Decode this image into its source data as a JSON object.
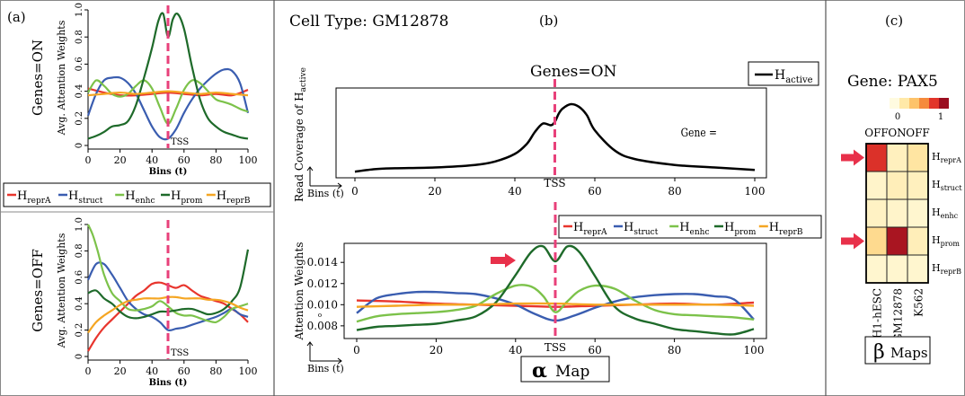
{
  "panel_labels": {
    "a": "(a)",
    "b": "(b)",
    "c": "(c)"
  },
  "heads": [
    {
      "key": "reprA",
      "label": "H",
      "sub": "reprA",
      "color": "#e8352d"
    },
    {
      "key": "struct",
      "label": "H",
      "sub": "struct",
      "color": "#3a5db0"
    },
    {
      "key": "enhc",
      "label": "H",
      "sub": "enhc",
      "color": "#7cc24a"
    },
    {
      "key": "prom",
      "label": "H",
      "sub": "prom",
      "color": "#1e6a2a"
    },
    {
      "key": "reprB",
      "label": "H",
      "sub": "reprB",
      "color": "#f5a623"
    }
  ],
  "tss_color": "#e8407a",
  "arrow_color": "#e8304a",
  "panel_a": {
    "tss_label": "TSS",
    "tss_x": 50,
    "charts": [
      {
        "side_title": "Genes=ON",
        "ylabel": "Avg. Attention Weights",
        "xlabel": "Bins (t)",
        "xlim": [
          0,
          100
        ],
        "ylim": [
          0,
          1
        ],
        "xticks": [
          0,
          20,
          40,
          60,
          80,
          100
        ],
        "yticks": [
          0,
          0.2,
          0.4,
          0.6,
          0.8,
          1
        ],
        "ytick_labels": [
          "0",
          "0.2",
          "0.4",
          "0.6",
          "0.8",
          "1.0"
        ],
        "series": [
          {
            "key": "reprA",
            "x": [
              0,
              10,
              20,
              30,
              40,
              50,
              60,
              70,
              80,
              90,
              100
            ],
            "y": [
              0.42,
              0.39,
              0.37,
              0.37,
              0.38,
              0.39,
              0.38,
              0.37,
              0.38,
              0.37,
              0.41
            ]
          },
          {
            "key": "struct",
            "x": [
              0,
              5,
              10,
              15,
              20,
              25,
              30,
              35,
              40,
              45,
              50,
              55,
              60,
              65,
              70,
              75,
              80,
              85,
              90,
              95,
              100
            ],
            "y": [
              0.22,
              0.38,
              0.48,
              0.5,
              0.5,
              0.46,
              0.38,
              0.26,
              0.14,
              0.06,
              0.05,
              0.12,
              0.24,
              0.34,
              0.42,
              0.48,
              0.53,
              0.56,
              0.55,
              0.46,
              0.24
            ]
          },
          {
            "key": "enhc",
            "x": [
              0,
              5,
              10,
              15,
              20,
              25,
              30,
              35,
              40,
              45,
              50,
              55,
              60,
              65,
              70,
              75,
              80,
              85,
              90,
              95,
              100
            ],
            "y": [
              0.39,
              0.48,
              0.44,
              0.38,
              0.36,
              0.38,
              0.44,
              0.48,
              0.42,
              0.28,
              0.16,
              0.27,
              0.41,
              0.48,
              0.46,
              0.4,
              0.34,
              0.32,
              0.3,
              0.27,
              0.25
            ]
          },
          {
            "key": "prom",
            "x": [
              0,
              5,
              10,
              15,
              20,
              25,
              30,
              35,
              40,
              44,
              47,
              50,
              53,
              56,
              60,
              65,
              70,
              75,
              80,
              85,
              90,
              95,
              100
            ],
            "y": [
              0.05,
              0.07,
              0.1,
              0.14,
              0.15,
              0.18,
              0.3,
              0.5,
              0.72,
              0.92,
              0.97,
              0.8,
              0.93,
              0.97,
              0.86,
              0.58,
              0.34,
              0.2,
              0.14,
              0.1,
              0.08,
              0.06,
              0.05
            ]
          },
          {
            "key": "reprB",
            "x": [
              0,
              10,
              20,
              30,
              40,
              50,
              60,
              70,
              80,
              90,
              100
            ],
            "y": [
              0.37,
              0.38,
              0.39,
              0.38,
              0.39,
              0.4,
              0.39,
              0.38,
              0.39,
              0.38,
              0.37
            ]
          }
        ]
      },
      {
        "side_title": "Genes=OFF",
        "ylabel": "Avg. Attention Weights",
        "xlabel": "Bins (t)",
        "xlim": [
          0,
          100
        ],
        "ylim": [
          0,
          1
        ],
        "xticks": [
          0,
          20,
          40,
          60,
          80,
          100
        ],
        "yticks": [
          0,
          0.2,
          0.4,
          0.6,
          0.8,
          1
        ],
        "ytick_labels": [
          "0",
          "0.2",
          "0.4",
          "0.6",
          "0.8",
          "1.0"
        ],
        "series": [
          {
            "key": "reprA",
            "x": [
              0,
              5,
              10,
              15,
              20,
              25,
              30,
              35,
              40,
              45,
              50,
              55,
              60,
              65,
              70,
              75,
              80,
              85,
              90,
              95,
              100
            ],
            "y": [
              0.04,
              0.14,
              0.22,
              0.28,
              0.34,
              0.4,
              0.46,
              0.5,
              0.55,
              0.56,
              0.54,
              0.52,
              0.54,
              0.5,
              0.46,
              0.44,
              0.42,
              0.4,
              0.36,
              0.32,
              0.26
            ]
          },
          {
            "key": "struct",
            "x": [
              0,
              5,
              10,
              15,
              20,
              25,
              30,
              35,
              40,
              45,
              50,
              55,
              60,
              65,
              70,
              75,
              80,
              85,
              90,
              95,
              100
            ],
            "y": [
              0.58,
              0.7,
              0.7,
              0.62,
              0.52,
              0.42,
              0.36,
              0.32,
              0.3,
              0.26,
              0.2,
              0.21,
              0.22,
              0.24,
              0.26,
              0.28,
              0.3,
              0.33,
              0.36,
              0.32,
              0.3
            ]
          },
          {
            "key": "enhc",
            "x": [
              0,
              3,
              6,
              10,
              15,
              20,
              25,
              30,
              35,
              40,
              45,
              50,
              55,
              60,
              65,
              70,
              75,
              80,
              85,
              90,
              95,
              100
            ],
            "y": [
              1.0,
              0.92,
              0.8,
              0.62,
              0.48,
              0.42,
              0.36,
              0.35,
              0.36,
              0.38,
              0.42,
              0.38,
              0.33,
              0.31,
              0.31,
              0.29,
              0.27,
              0.26,
              0.3,
              0.36,
              0.38,
              0.4
            ]
          },
          {
            "key": "prom",
            "x": [
              0,
              5,
              10,
              15,
              20,
              25,
              30,
              35,
              40,
              45,
              50,
              55,
              60,
              65,
              70,
              75,
              80,
              85,
              90,
              95,
              100
            ],
            "y": [
              0.48,
              0.5,
              0.44,
              0.4,
              0.34,
              0.3,
              0.29,
              0.3,
              0.32,
              0.34,
              0.34,
              0.35,
              0.36,
              0.36,
              0.34,
              0.32,
              0.33,
              0.36,
              0.42,
              0.52,
              0.81
            ]
          },
          {
            "key": "reprB",
            "x": [
              0,
              5,
              10,
              15,
              20,
              25,
              30,
              35,
              40,
              45,
              50,
              55,
              60,
              65,
              70,
              75,
              80,
              85,
              90,
              95,
              100
            ],
            "y": [
              0.18,
              0.26,
              0.31,
              0.35,
              0.39,
              0.42,
              0.43,
              0.44,
              0.44,
              0.44,
              0.45,
              0.45,
              0.44,
              0.44,
              0.44,
              0.43,
              0.43,
              0.42,
              0.4,
              0.37,
              0.35
            ]
          }
        ]
      }
    ]
  },
  "panel_b": {
    "cell_type": "Cell Type: GM12878",
    "subtitle": "Genes=ON",
    "map_symbol": "α",
    "map_label": "Map",
    "tss_label": "TSS",
    "tss_x": 50,
    "top_chart": {
      "ylabel_main": "Read Coverage of H",
      "ylabel_sub": "active",
      "xlabel": "Bins (t)",
      "legend_main": "H",
      "legend_sub": "active",
      "xlim": [
        0,
        100
      ],
      "xticks": [
        0,
        20,
        40,
        60,
        80,
        100
      ],
      "series": {
        "x": [
          0,
          5,
          10,
          20,
          30,
          35,
          40,
          43,
          45,
          47,
          49,
          50,
          51,
          52,
          54,
          56,
          58,
          60,
          65,
          70,
          80,
          90,
          100
        ],
        "y": [
          0.03,
          0.06,
          0.07,
          0.08,
          0.11,
          0.15,
          0.24,
          0.36,
          0.5,
          0.6,
          0.58,
          0.62,
          0.72,
          0.78,
          0.83,
          0.8,
          0.7,
          0.52,
          0.28,
          0.18,
          0.11,
          0.08,
          0.05
        ],
        "color": "#000000"
      }
    },
    "bottom_chart": {
      "ylabel": "Attention Weights",
      "xlabel": "Bins (t)",
      "xlim": [
        0,
        100
      ],
      "ylim": [
        0.0068,
        0.0158
      ],
      "xticks": [
        0,
        20,
        40,
        60,
        80,
        100
      ],
      "yticks": [
        0.008,
        0.01,
        0.012,
        0.014
      ],
      "ytick_labels": [
        "0.008",
        "0.010",
        "0.012",
        "0.014"
      ],
      "axis_glyph": "o",
      "series": [
        {
          "key": "reprA",
          "x": [
            0,
            10,
            20,
            30,
            40,
            50,
            60,
            70,
            80,
            90,
            100
          ],
          "y": [
            0.0104,
            0.0103,
            0.0101,
            0.01,
            0.0099,
            0.0098,
            0.0099,
            0.01,
            0.0101,
            0.01,
            0.0102
          ]
        },
        {
          "key": "struct",
          "x": [
            0,
            5,
            10,
            15,
            20,
            25,
            30,
            35,
            40,
            45,
            50,
            55,
            60,
            65,
            70,
            75,
            80,
            85,
            90,
            95,
            100
          ],
          "y": [
            0.0092,
            0.0106,
            0.011,
            0.0112,
            0.0112,
            0.0111,
            0.011,
            0.0106,
            0.01,
            0.0091,
            0.0085,
            0.009,
            0.0097,
            0.0103,
            0.0107,
            0.0109,
            0.011,
            0.011,
            0.0108,
            0.0105,
            0.0086
          ]
        },
        {
          "key": "enhc",
          "x": [
            0,
            5,
            10,
            15,
            20,
            25,
            30,
            35,
            40,
            44,
            47,
            50,
            53,
            56,
            60,
            65,
            70,
            75,
            80,
            85,
            90,
            95,
            100
          ],
          "y": [
            0.0084,
            0.0089,
            0.0091,
            0.0092,
            0.0093,
            0.0095,
            0.0099,
            0.011,
            0.0118,
            0.0117,
            0.0108,
            0.0093,
            0.0103,
            0.0113,
            0.0118,
            0.0115,
            0.0104,
            0.0095,
            0.0091,
            0.009,
            0.0089,
            0.0088,
            0.0086
          ]
        },
        {
          "key": "prom",
          "x": [
            0,
            5,
            10,
            15,
            20,
            25,
            30,
            35,
            40,
            44,
            47,
            50,
            53,
            56,
            60,
            65,
            70,
            75,
            80,
            85,
            90,
            95,
            100
          ],
          "y": [
            0.0076,
            0.0079,
            0.008,
            0.0081,
            0.0082,
            0.0085,
            0.0089,
            0.0102,
            0.0128,
            0.015,
            0.0155,
            0.0141,
            0.0155,
            0.015,
            0.0127,
            0.0098,
            0.0087,
            0.0082,
            0.0077,
            0.0075,
            0.0073,
            0.0072,
            0.0077
          ]
        },
        {
          "key": "reprB",
          "x": [
            0,
            10,
            20,
            30,
            40,
            50,
            60,
            70,
            80,
            90,
            100
          ],
          "y": [
            0.0098,
            0.0099,
            0.01,
            0.01,
            0.0101,
            0.0101,
            0.01,
            0.01,
            0.01,
            0.01,
            0.0099
          ]
        }
      ]
    }
  },
  "panel_c": {
    "gene_title": "Gene: PAX5",
    "scale_min": "0",
    "scale_max": "1",
    "gene_state_label": "Gene =",
    "states": [
      "OFF",
      "ON",
      "OFF"
    ],
    "cell_types": [
      "H1-hESC",
      "GM12878",
      "K562"
    ],
    "heads": [
      {
        "label": "H",
        "sub": "reprA"
      },
      {
        "label": "H",
        "sub": "struct"
      },
      {
        "label": "H",
        "sub": "enhc"
      },
      {
        "label": "H",
        "sub": "prom"
      },
      {
        "label": "H",
        "sub": "reprB"
      }
    ],
    "matrix": [
      [
        0.82,
        0.12,
        0.22
      ],
      [
        0.08,
        0.14,
        0.12
      ],
      [
        0.1,
        0.08,
        0.06
      ],
      [
        0.28,
        0.96,
        0.14
      ],
      [
        0.06,
        0.06,
        0.06
      ]
    ],
    "arrow_rows": [
      0,
      3
    ],
    "beta_symbol": "β",
    "beta_label": "Maps"
  }
}
